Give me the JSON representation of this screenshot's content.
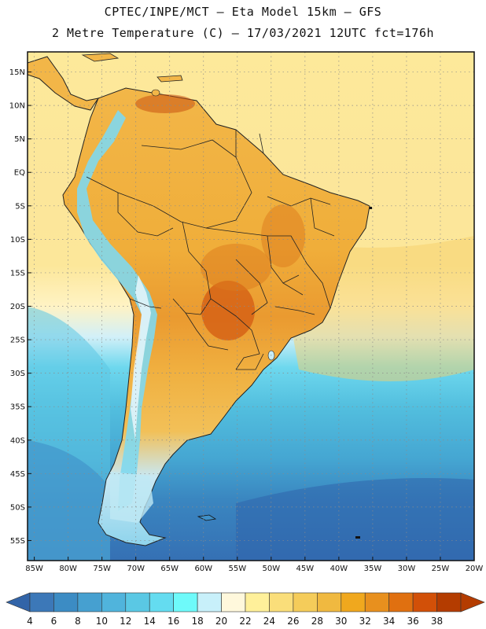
{
  "header": {
    "line1": "CPTEC/INPE/MCT –  Eta Model 15km – GFS",
    "line2": "2 Metre Temperature (C) – 17/03/2021 12UTC fct=176h"
  },
  "map": {
    "region": "South America",
    "lat_range": [
      -58,
      18
    ],
    "lon_range": [
      -86,
      -20
    ],
    "lat_labels": [
      "15N",
      "10N",
      "5N",
      "EQ",
      "5S",
      "10S",
      "15S",
      "20S",
      "25S",
      "30S",
      "35S",
      "40S",
      "45S",
      "50S",
      "55S"
    ],
    "lon_labels": [
      "85W",
      "80W",
      "75W",
      "70W",
      "65W",
      "60W",
      "55W",
      "50W",
      "45W",
      "40W",
      "35W",
      "30W",
      "25W",
      "20W"
    ]
  },
  "colorbar": {
    "labels": [
      "4",
      "6",
      "8",
      "10",
      "12",
      "14",
      "16",
      "18",
      "20",
      "22",
      "24",
      "26",
      "28",
      "30",
      "32",
      "34",
      "36",
      "38"
    ],
    "colors": [
      "#3c78b8",
      "#3c8cc4",
      "#46a0d0",
      "#50b4dc",
      "#5ac8e4",
      "#64dcf0",
      "#6efafa",
      "#c8f0fa",
      "#fff8dc",
      "#fff09a",
      "#fade7a",
      "#f5cc5a",
      "#f0b940",
      "#f0a81e",
      "#e8901e",
      "#e07010",
      "#d25008",
      "#b43c00"
    ],
    "end_low": "#3264a8",
    "end_high": "#b43c00"
  }
}
